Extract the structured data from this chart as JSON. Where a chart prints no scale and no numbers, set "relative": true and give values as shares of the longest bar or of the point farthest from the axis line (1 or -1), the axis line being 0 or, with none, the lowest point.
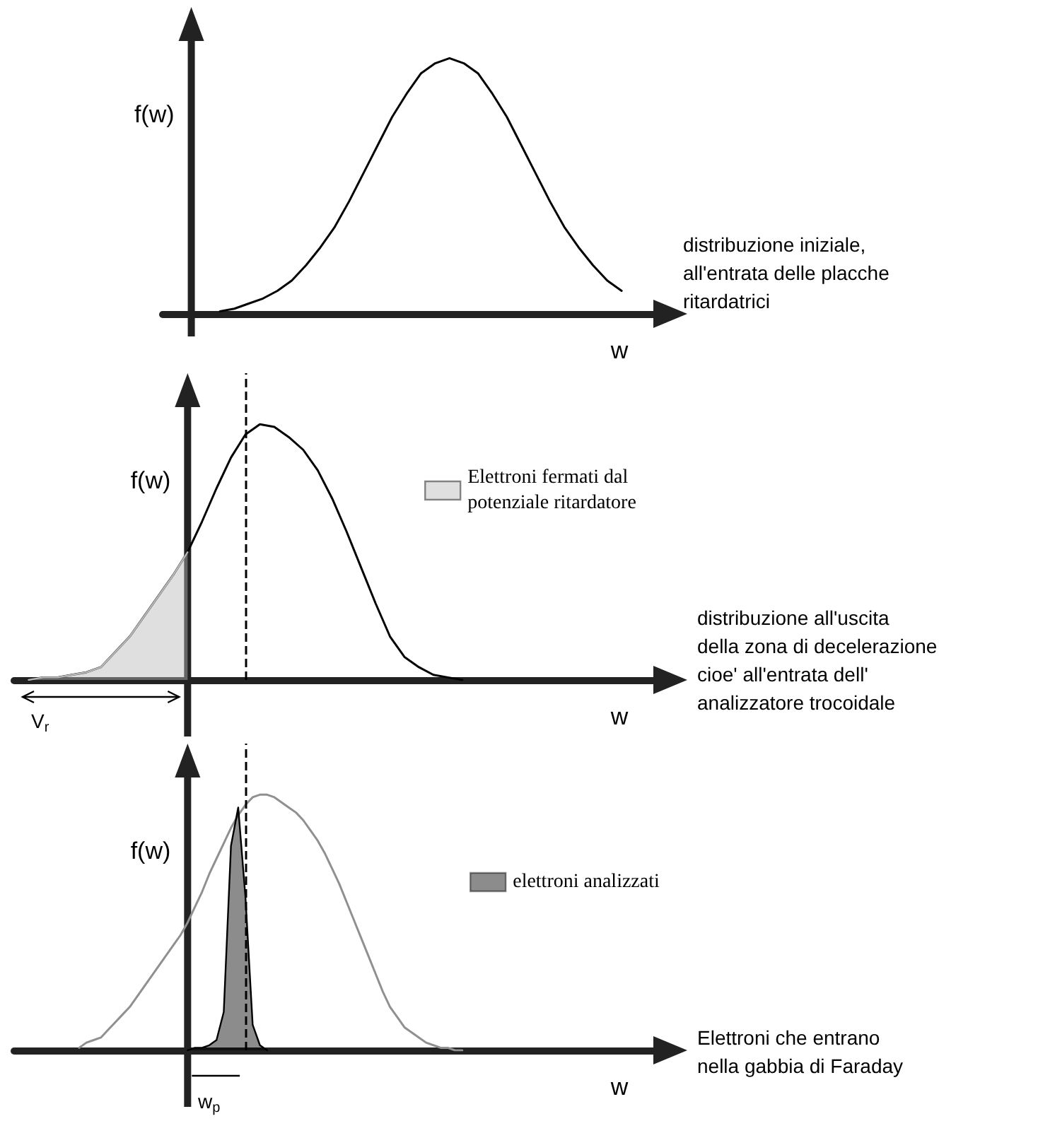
{
  "chart_data": [
    {
      "type": "line",
      "relative": true,
      "xlabel": "w",
      "ylabel": "f(w)",
      "grid": false,
      "legend": false,
      "marker": "none",
      "line_style": "solid",
      "categories": [
        null,
        null,
        null,
        null,
        null,
        null,
        null,
        null,
        null,
        null,
        null,
        null,
        null,
        null,
        null,
        null,
        null,
        null,
        null,
        null,
        null,
        null,
        null,
        null,
        null,
        null,
        null,
        null,
        null,
        null,
        null,
        null,
        null,
        null,
        null,
        null
      ],
      "annotations": [
        "distribuzione iniziale,\nall'entrata delle placche\nritardatrici"
      ],
      "series": [
        {
          "color": "#000000",
          "values": [
            null,
            null,
            null,
            null,
            0.01,
            0.02,
            0.04,
            0.06,
            0.09,
            0.13,
            0.19,
            0.26,
            0.34,
            0.44,
            0.55,
            0.66,
            0.77,
            0.86,
            0.94,
            0.98,
            1,
            0.98,
            0.94,
            0.86,
            0.77,
            0.66,
            0.55,
            0.44,
            0.34,
            0.26,
            0.19,
            0.13,
            0.09,
            null,
            null,
            null
          ]
        }
      ]
    },
    {
      "type": "line",
      "relative": true,
      "xlabel": "w",
      "ylabel": "f(w)",
      "grid": false,
      "legend": "top right",
      "marker": "none",
      "line_style": "solid",
      "categories": [
        null,
        null,
        null,
        null,
        null,
        null,
        null,
        null,
        null,
        null,
        null,
        null,
        null,
        null,
        null,
        null,
        null,
        null,
        null,
        null,
        null,
        null,
        null,
        null,
        null,
        null,
        null,
        null,
        null,
        null,
        null,
        null,
        null,
        null,
        null,
        null,
        null,
        null,
        null,
        null,
        null,
        null,
        null,
        null,
        null,
        null
      ],
      "annotations": [
        "distribuzione all'uscita\ndella zona di decelerazione\ncioe' all'entrata dell'\nanalizzatore trocoidale",
        "V$_{r}$"
      ],
      "ref_lines": [
        {
          "axis": "x",
          "color": "#000000",
          "line_style": "dashed"
        }
      ],
      "series": [
        {
          "type": "area",
          "name": "Elettroni fermati dal potenziale ritardatore",
          "color": "#b8b8b8",
          "values": [
            null,
            0,
            0.01,
            0.01,
            0.02,
            0.03,
            0.05,
            0.11,
            0.17,
            0.25,
            0.33,
            0.41,
            0.5,
            null,
            null,
            null,
            null,
            null,
            null,
            null,
            null,
            null,
            null,
            null,
            null,
            null,
            null,
            null,
            null,
            null,
            null,
            null,
            null,
            null,
            null,
            null,
            null,
            null,
            null,
            null,
            null,
            null,
            null,
            null,
            null,
            null
          ]
        },
        {
          "color": "#000000",
          "values": [
            null,
            0,
            0.01,
            0.01,
            0.02,
            0.03,
            0.05,
            0.11,
            0.17,
            0.25,
            0.33,
            0.41,
            0.5,
            0.62,
            0.75,
            0.87,
            0.96,
            1,
            0.99,
            0.95,
            0.9,
            0.82,
            0.71,
            0.58,
            0.44,
            0.3,
            0.17,
            0.09,
            0.05,
            0.02,
            0.01,
            0,
            null,
            null,
            null,
            null,
            null,
            null,
            null,
            null,
            null,
            null,
            null,
            null,
            null,
            null
          ]
        }
      ]
    },
    {
      "type": "line",
      "relative": true,
      "xlabel": "w",
      "ylabel": "f(w)",
      "grid": false,
      "legend": "top right",
      "marker": "none",
      "line_style": "solid",
      "categories": [
        null,
        null,
        null,
        null,
        null,
        null,
        null,
        null,
        null,
        null,
        null,
        null,
        null,
        null,
        null,
        null,
        null,
        null,
        null,
        null,
        null,
        null,
        null,
        null,
        null,
        null,
        null,
        null,
        null,
        null,
        null,
        null,
        null,
        null,
        null,
        null,
        null,
        null,
        null,
        null,
        null,
        null,
        null,
        null,
        null,
        null,
        null,
        null,
        null,
        null,
        null,
        null,
        null,
        null,
        null,
        null,
        null,
        null,
        null,
        null,
        null,
        null,
        null,
        null,
        null,
        null,
        null,
        null,
        null,
        null,
        null,
        null,
        null,
        null,
        null,
        null,
        null,
        null,
        null,
        null,
        null,
        null,
        null,
        null,
        null,
        null,
        null,
        null,
        null,
        null,
        null
      ],
      "annotations": [
        "Elettroni che entrano\nnella gabbia di Faraday",
        "w$_{p}$"
      ],
      "ref_lines": [
        {
          "axis": "x",
          "color": "#000000",
          "line_style": "dashed"
        }
      ],
      "series": [
        {
          "color": "#909090",
          "values": [
            null,
            null,
            null,
            null,
            null,
            null,
            null,
            null,
            null,
            0.01,
            0.03,
            0.04,
            0.05,
            0.08,
            0.11,
            0.14,
            0.17,
            0.21,
            0.25,
            0.29,
            0.33,
            0.37,
            0.41,
            0.45,
            0.5,
            0.56,
            0.62,
            0.69,
            0.75,
            0.81,
            0.87,
            0.92,
            0.96,
            0.99,
            1,
            1,
            0.99,
            0.97,
            0.95,
            0.93,
            0.9,
            0.86,
            0.82,
            0.77,
            0.71,
            0.65,
            0.58,
            0.51,
            0.44,
            0.37,
            0.3,
            0.23,
            0.17,
            0.13,
            0.09,
            0.07,
            0.05,
            0.03,
            0.02,
            0.01,
            0.01,
            0,
            0,
            null,
            null,
            null,
            null,
            null,
            null,
            null,
            null,
            null,
            null,
            null,
            null,
            null,
            null,
            null,
            null,
            null,
            null,
            null,
            null,
            null,
            null,
            null,
            null,
            null,
            null,
            null,
            null
          ]
        },
        {
          "type": "area",
          "name": "elettroni analizzati",
          "color": "#000000",
          "values": [
            null,
            null,
            null,
            null,
            null,
            null,
            null,
            null,
            null,
            null,
            null,
            null,
            null,
            null,
            null,
            null,
            null,
            null,
            null,
            null,
            null,
            null,
            null,
            null,
            0,
            0.01,
            0.01,
            0.02,
            0.04,
            0.15,
            0.8,
            0.95,
            0.6,
            0.1,
            0.02,
            0,
            null,
            null,
            null,
            null,
            null,
            null,
            null,
            null,
            null,
            null,
            null,
            null,
            null,
            null,
            null,
            null,
            null,
            null,
            null,
            null,
            null,
            null,
            null,
            null,
            null,
            null,
            null,
            null,
            null,
            null,
            null,
            null,
            null,
            null,
            null,
            null,
            null,
            null,
            null,
            null,
            null,
            null,
            null,
            null,
            null,
            null,
            null,
            null,
            null,
            null,
            null,
            null,
            null,
            null,
            null
          ]
        }
      ]
    }
  ]
}
